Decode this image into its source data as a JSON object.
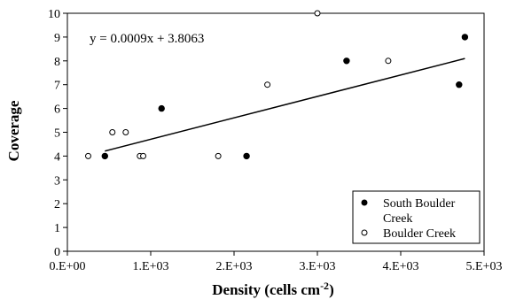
{
  "chart_data": {
    "type": "scatter",
    "title": "",
    "xlabel": "Density (cells cm",
    "xlabel_sup": "-2",
    "xlabel_suffix": ")",
    "ylabel": "Coverage",
    "xlim": [
      0,
      5000
    ],
    "ylim": [
      0,
      10
    ],
    "x_ticks": [
      0,
      1000,
      2000,
      3000,
      4000,
      5000
    ],
    "x_tick_labels": [
      "0.E+00",
      "1.E+03",
      "2.E+03",
      "3.E+03",
      "4.E+03",
      "5.E+03"
    ],
    "y_ticks": [
      0,
      1,
      2,
      3,
      4,
      5,
      6,
      7,
      8,
      9,
      10
    ],
    "y_tick_labels": [
      "0",
      "1",
      "2",
      "3",
      "4",
      "5",
      "6",
      "7",
      "8",
      "9",
      "10"
    ],
    "grid": false,
    "legend_position": "bottom-right",
    "series": [
      {
        "name": "South Boulder Creek",
        "legend_lines": [
          "South Boulder",
          "Creek"
        ],
        "marker": "filled-circle",
        "color": "#000000",
        "points": [
          {
            "x": 450,
            "y": 4
          },
          {
            "x": 1130,
            "y": 6
          },
          {
            "x": 2150,
            "y": 4
          },
          {
            "x": 3350,
            "y": 8
          },
          {
            "x": 4700,
            "y": 7
          },
          {
            "x": 4770,
            "y": 9
          }
        ]
      },
      {
        "name": "Boulder Creek",
        "legend_lines": [
          "Boulder Creek"
        ],
        "marker": "open-circle",
        "color": "#000000",
        "points": [
          {
            "x": 250,
            "y": 4
          },
          {
            "x": 540,
            "y": 5
          },
          {
            "x": 700,
            "y": 5
          },
          {
            "x": 870,
            "y": 4
          },
          {
            "x": 910,
            "y": 4
          },
          {
            "x": 1810,
            "y": 4
          },
          {
            "x": 2400,
            "y": 7
          },
          {
            "x": 3000,
            "y": 10
          },
          {
            "x": 3850,
            "y": 8
          }
        ]
      }
    ],
    "trendline": {
      "slope": 0.0009,
      "intercept": 3.8063,
      "x_range": [
        450,
        4770
      ],
      "equation_label": "y = 0.0009x + 3.8063"
    }
  }
}
